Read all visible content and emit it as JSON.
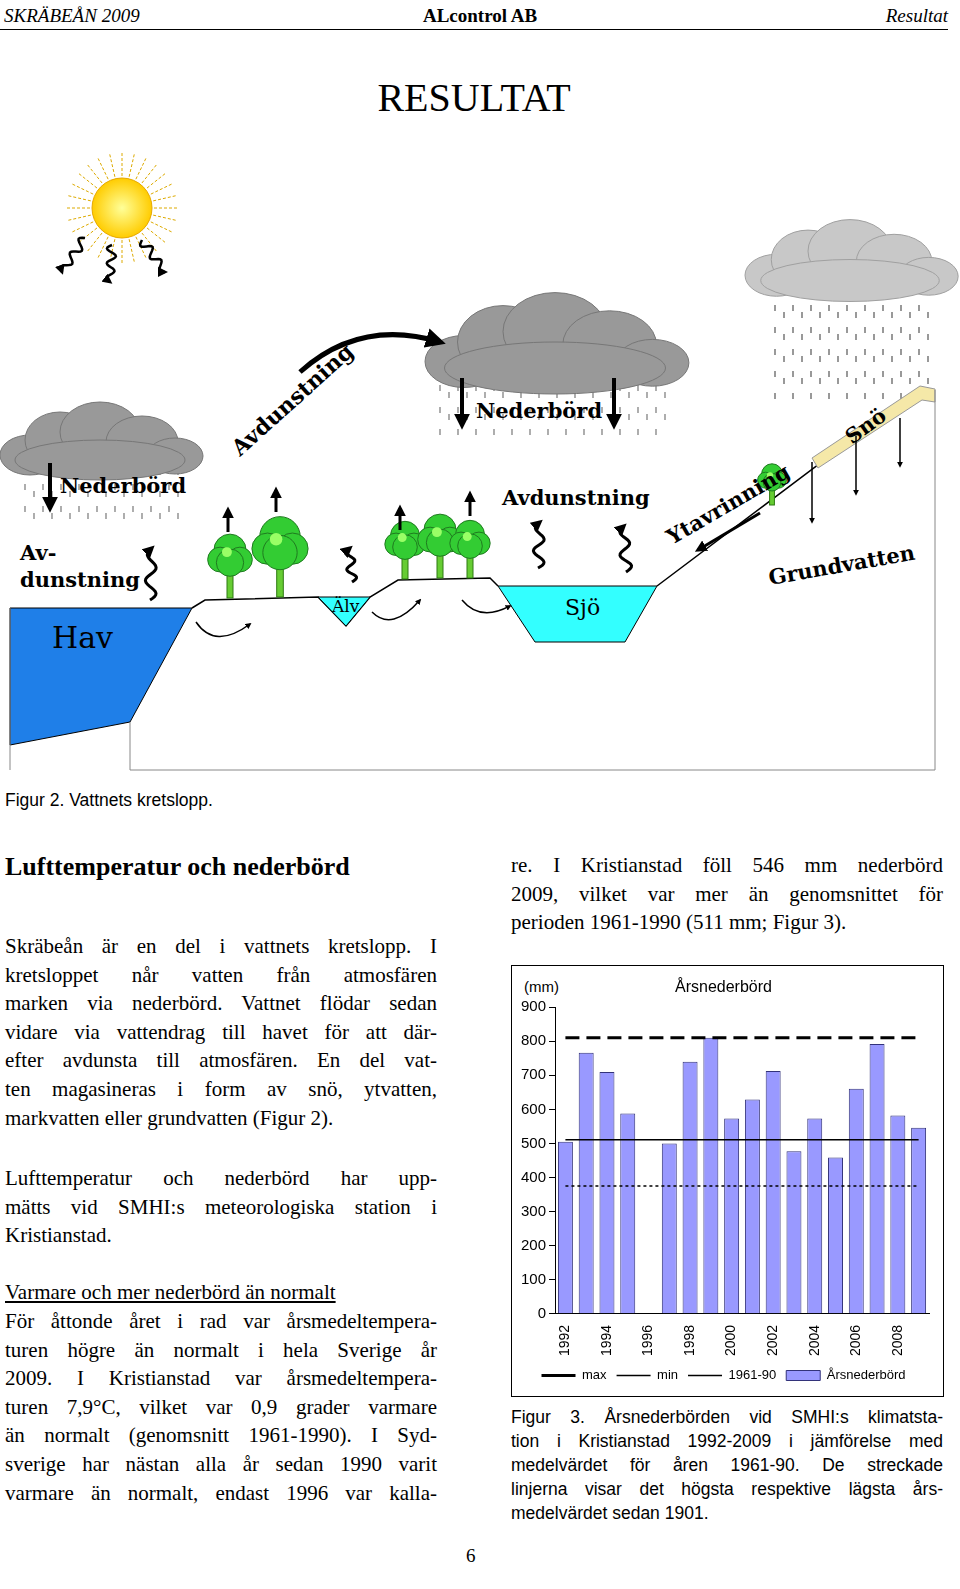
{
  "header": {
    "left": "SKRÄBEÅN 2009",
    "center": "ALcontrol AB",
    "right": "Resultat"
  },
  "title": "RESULTAT",
  "figure2": {
    "labels": {
      "nederbord_left": "Nederbörd",
      "nederbord_middle": "Nederbörd",
      "avdunstning_arc": "Avdunstning",
      "avdunstning_lake": "Avdunstning",
      "avdunstning_sea": [
        "Av-",
        "dunstning"
      ],
      "hav": "Hav",
      "alv": "Älv",
      "sjo": "Sjö",
      "ytavrinning": "Ytavrinning",
      "sno": "Snö",
      "grundvatten": "Grundvatten"
    },
    "caption": "Figur 2. Vattnets kretslopp."
  },
  "text": {
    "heading": "Lufttemperatur och nederbörd",
    "left_column": [
      {
        "lines": [
          "Skräbeån är en del i vattnets kretslopp. I",
          "kretsloppet når vatten från atmosfären",
          "marken via nederbörd. Vattnet flödar sedan",
          "vidare via vattendrag till havet för att där-",
          "efter avdunsta till atmosfären. En del vat-",
          "ten magasineras i form av snö, ytvatten,",
          "markvatten eller grundvatten (Figur 2)."
        ]
      },
      {
        "lines": [
          "Lufttemperatur och nederbörd har upp-",
          "mätts vid SMHI:s meteorologiska station i",
          "Kristianstad."
        ]
      },
      {
        "subheading": "Varmare och mer nederbörd än normalt"
      },
      {
        "lines": [
          "För åttonde året i rad var årsmedeltempera-",
          "turen högre än normalt i hela Sverige år",
          "2009. I Kristianstad var årsmedeltempera-",
          "turen 7,9°C, vilket var 0,9 grader varmare",
          "än normalt (genomsnitt 1961-1990). I Syd-",
          "sverige har nästan alla år sedan 1990 varit",
          "varmare än normalt, endast 1996 var kalla-"
        ]
      }
    ],
    "right_column": [
      {
        "lines": [
          "re. I Kristianstad föll 546 mm nederbörd",
          "2009, vilket var mer än genomsnittet för",
          "perioden 1961-1990 (511 mm; Figur 3)."
        ]
      }
    ]
  },
  "chart_data": {
    "type": "bar",
    "title": "Årsnederbörd",
    "ylabel": "(mm)",
    "categories": [
      "1992",
      null,
      "1994",
      null,
      "1996",
      null,
      "1998",
      null,
      "2000",
      null,
      "2002",
      null,
      "2004",
      null,
      "2006",
      null,
      "2008",
      null
    ],
    "series": [
      {
        "name": "Årsnederbörd",
        "type": "bar",
        "color": "#9999ff",
        "values": [
          505,
          766,
          710,
          588,
          null,
          500,
          740,
          810,
          573,
          629,
          713,
          477,
          573,
          459,
          661,
          792,
          582,
          546
        ]
      },
      {
        "name": "max",
        "type": "line",
        "color": "#000000",
        "line_style": "dashed",
        "values": [
          810,
          810,
          810,
          810,
          810,
          810,
          810,
          810,
          810,
          810,
          810,
          810,
          810,
          810,
          810,
          810,
          810,
          810
        ]
      },
      {
        "name": "min",
        "type": "line",
        "color": "#000000",
        "line_style": "dotted",
        "values": [
          375,
          375,
          375,
          375,
          375,
          375,
          375,
          375,
          375,
          375,
          375,
          375,
          375,
          375,
          375,
          375,
          375,
          375
        ]
      },
      {
        "name": "1961-90",
        "type": "line",
        "color": "#000000",
        "line_style": "solid",
        "values": [
          511,
          511,
          511,
          511,
          511,
          511,
          511,
          511,
          511,
          511,
          511,
          511,
          511,
          511,
          511,
          511,
          511,
          511
        ]
      }
    ],
    "ylim": [
      0,
      900
    ],
    "yticks": [
      0,
      100,
      200,
      300,
      400,
      500,
      600,
      700,
      800,
      900
    ],
    "grid": false,
    "legend": "bottom"
  },
  "figure3_caption": [
    "Figur 3. Årsnederbörden vid SMHI:s klimatsta-",
    "tion i Kristianstad 1992-2009 i jämförelse med",
    "medelvärdet för åren 1961-90. De streckade",
    "linjerna visar det högsta respektive lägsta års-",
    "medelvärdet sedan 1901."
  ],
  "page_number": "6"
}
